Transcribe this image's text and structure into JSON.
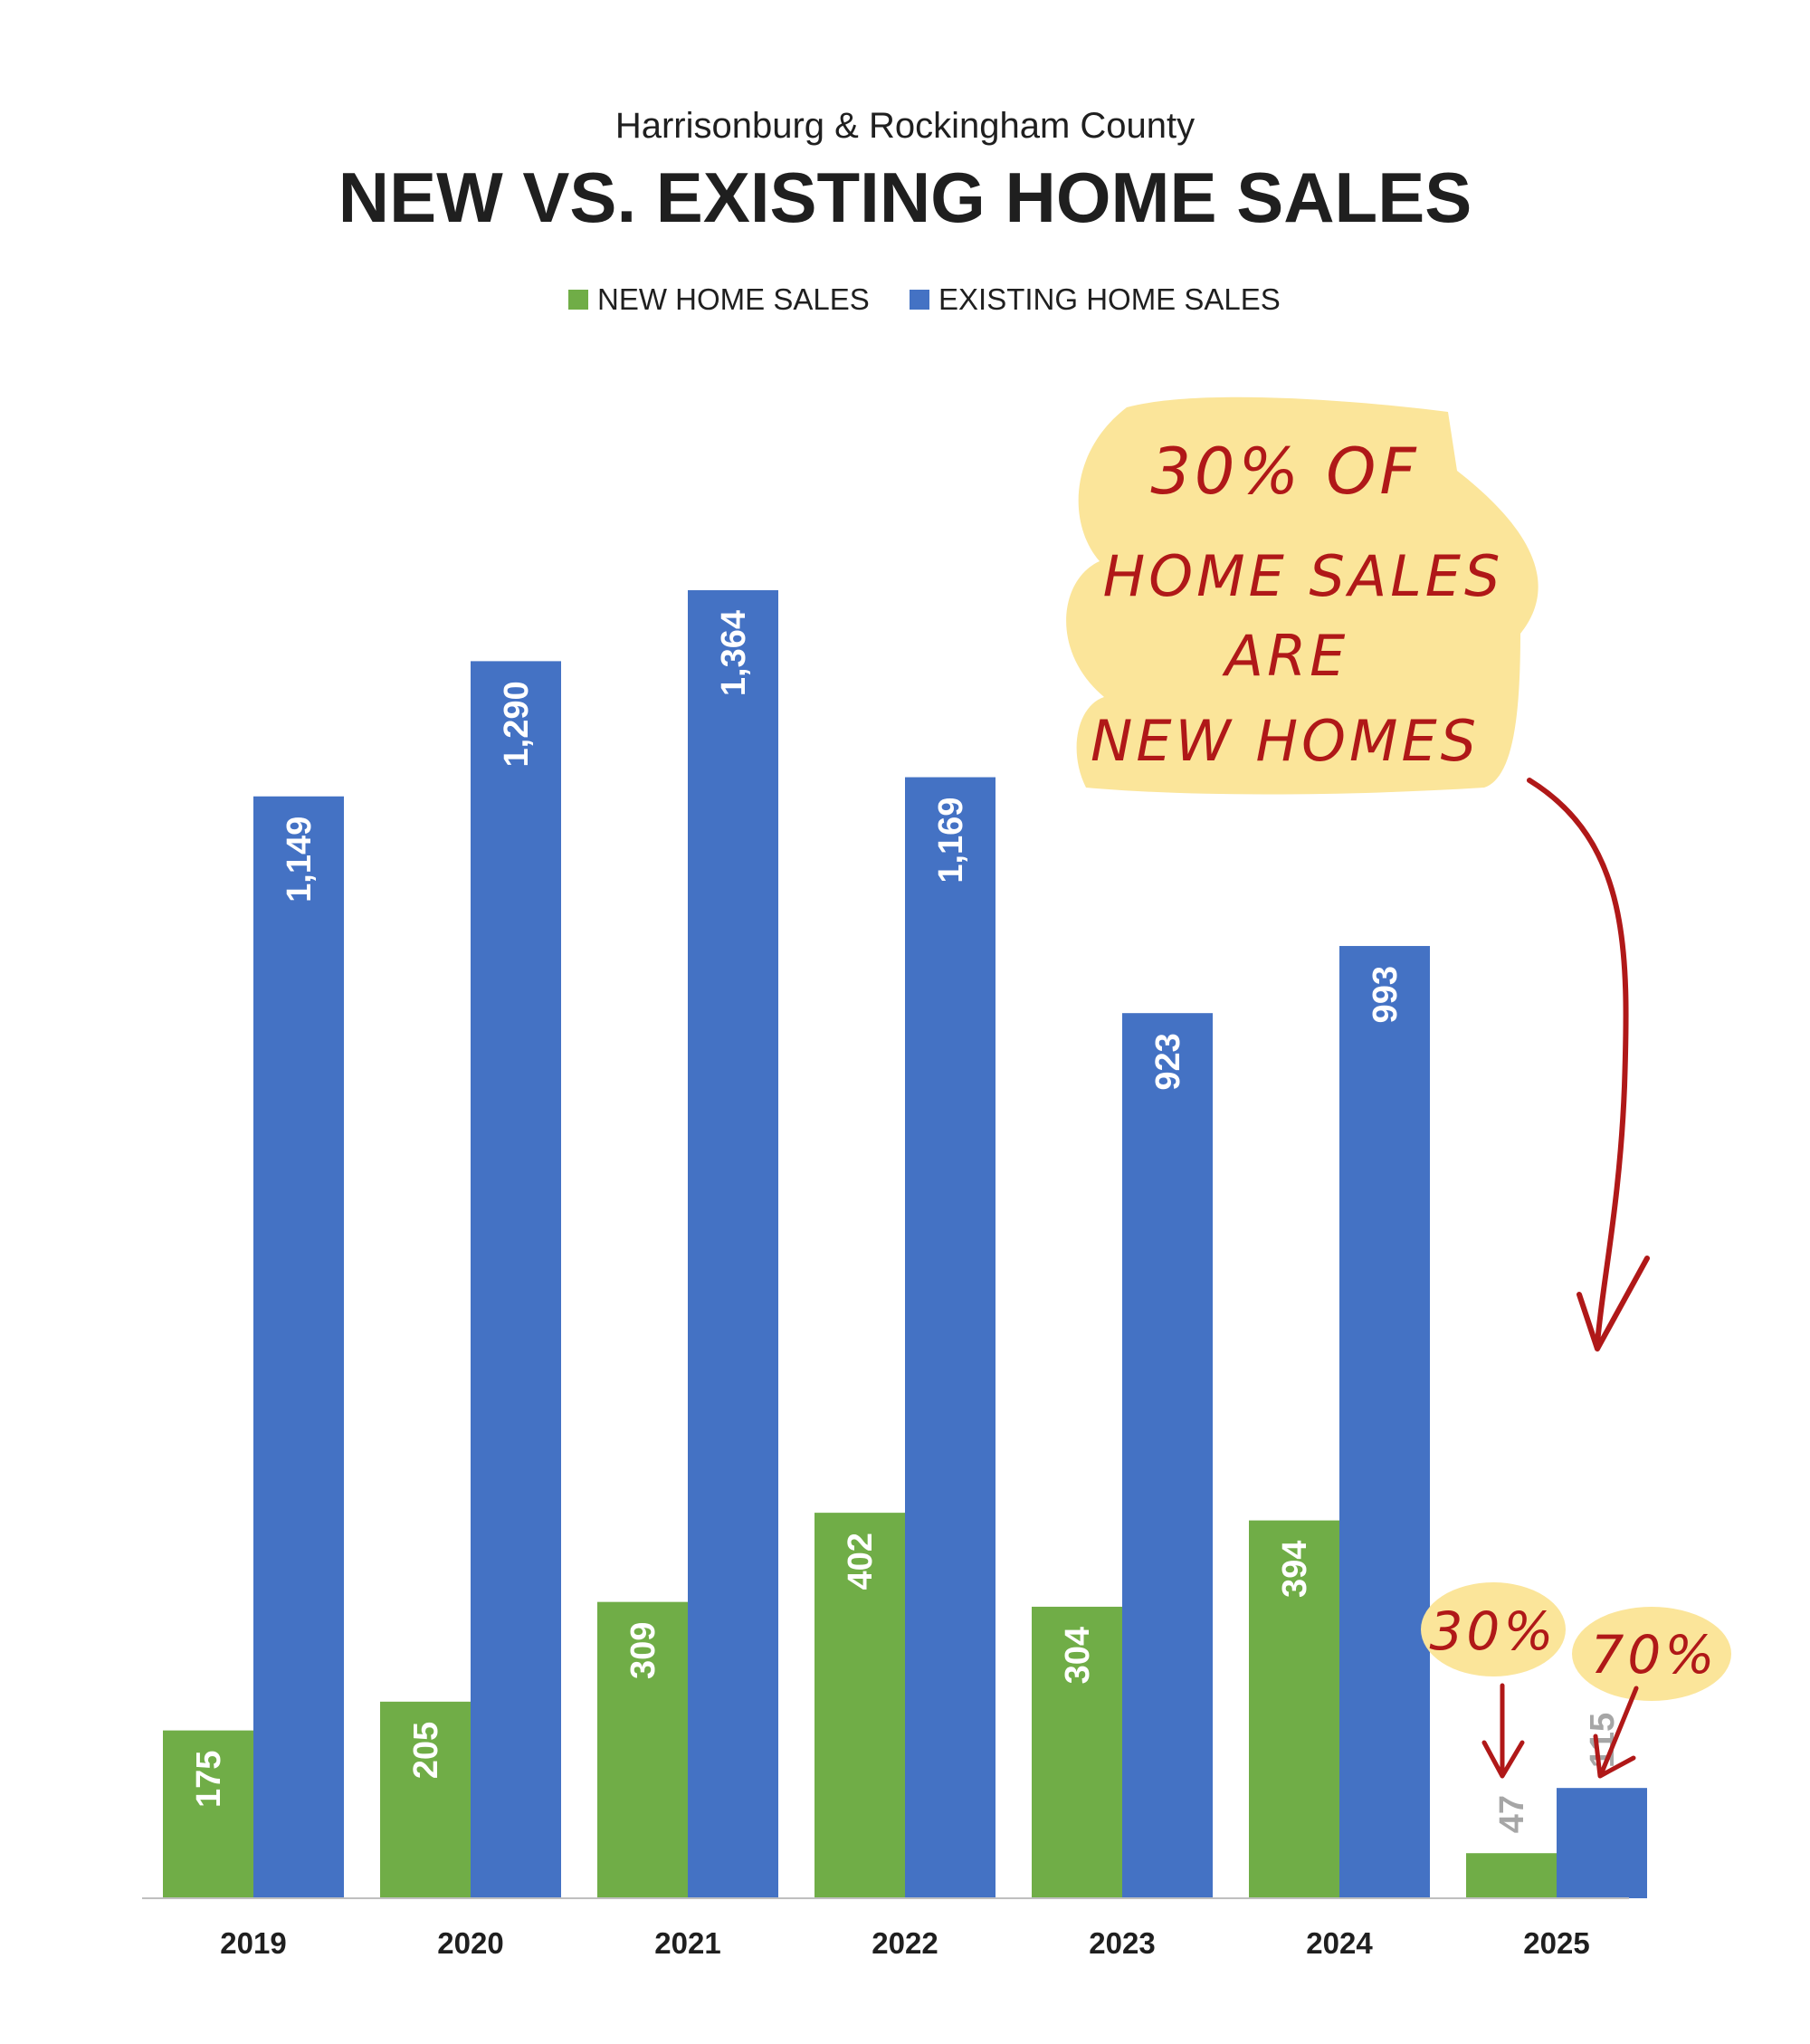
{
  "chart_data": {
    "type": "bar",
    "subtitle": "Harrisonburg & Rockingham County",
    "title": "NEW VS. EXISTING HOME SALES",
    "categories": [
      "2019",
      "2020",
      "2021",
      "2022",
      "2023",
      "2024",
      "2025"
    ],
    "series": [
      {
        "name": "NEW HOME SALES",
        "color": "#70ad47",
        "values": [
          175,
          205,
          309,
          402,
          304,
          394,
          47
        ]
      },
      {
        "name": "EXISTING HOME SALES",
        "color": "#4472c4",
        "values": [
          1149,
          1290,
          1364,
          1169,
          923,
          993,
          115
        ]
      }
    ],
    "data_labels": {
      "new": [
        "175",
        "205",
        "309",
        "402",
        "304",
        "394",
        "47"
      ],
      "existing": [
        "1,149",
        "1,290",
        "1,364",
        "1,169",
        "923",
        "993",
        "115"
      ]
    },
    "ylim": [
      0,
      1400
    ],
    "grid": false,
    "legend": "top",
    "annotations": {
      "main_lines": [
        "30% OF",
        "HOME SALES",
        "ARE",
        "NEW HOMES"
      ],
      "new_pct": "30%",
      "existing_pct": "70%"
    },
    "colors": {
      "highlight": "#fbe59a",
      "annotation_ink": "#b01818",
      "small_label": "#a6a6a6",
      "axis": "#bfbfbf"
    }
  }
}
